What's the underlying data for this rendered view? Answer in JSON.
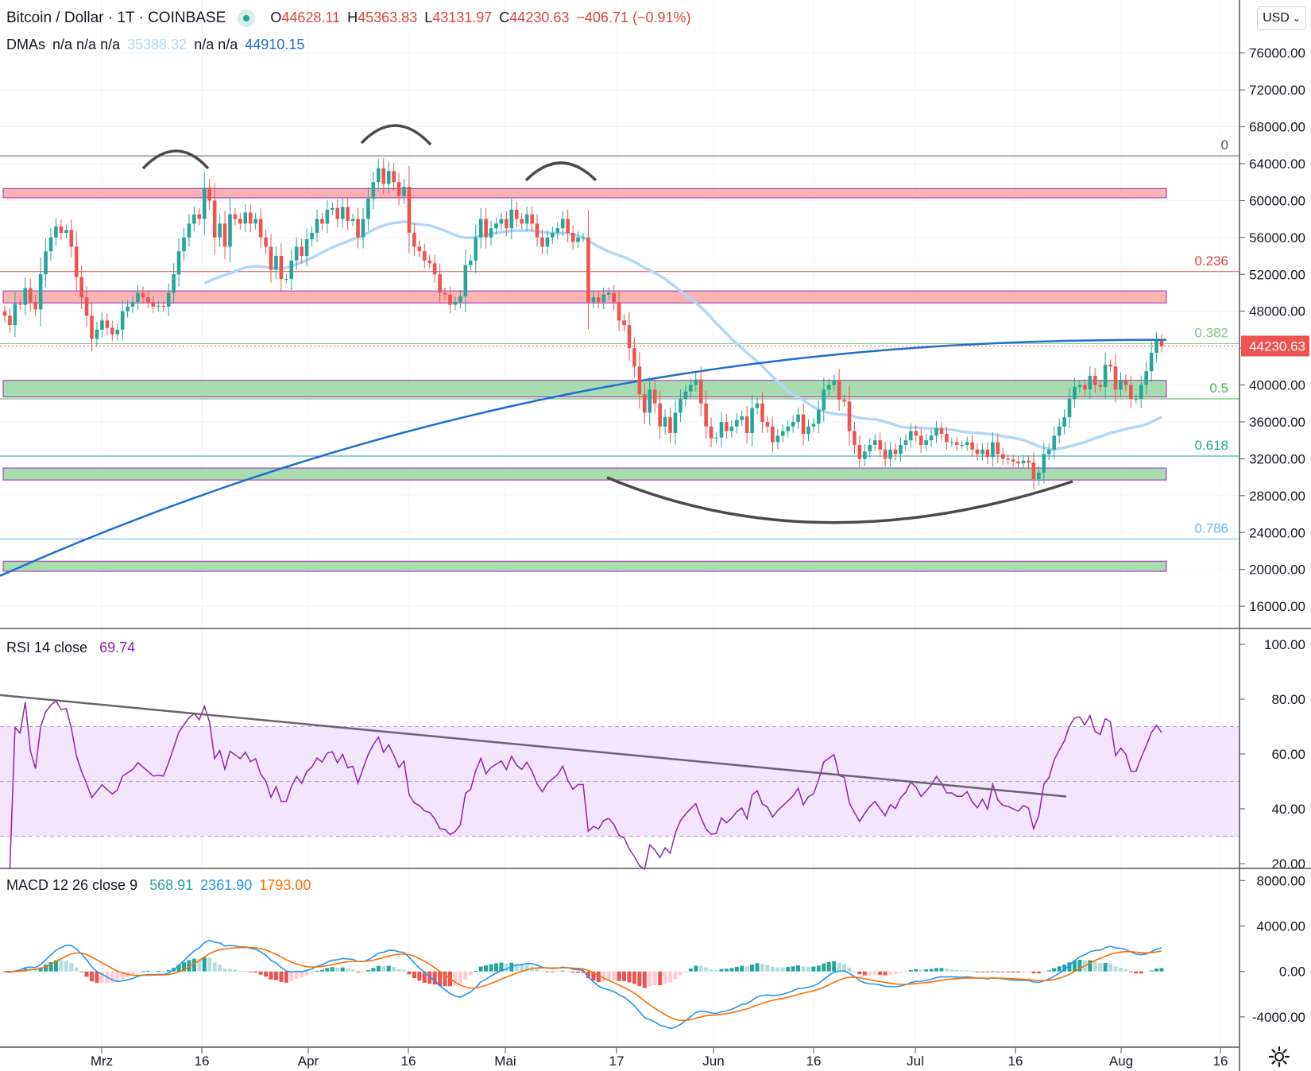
{
  "legend": {
    "symbol": "Bitcoin / Dollar · 1T · COINBASE",
    "o_label": "O",
    "o_value": "44628.11",
    "h_label": "H",
    "h_value": "45363.83",
    "l_label": "L",
    "l_value": "43131.97",
    "c_label": "C",
    "c_value": "44230.63",
    "change": "−406.71 (−0.91%)",
    "dma_label": "DMAs",
    "dma_values": "n/a n/a n/a",
    "dma_value_light": "35388.32",
    "dma_values2": "n/a n/a",
    "dma_value_blue": "44910.15",
    "rsi_label": "RSI 14 close",
    "rsi_value": "69.74",
    "macd_label": "MACD 12 26 close 9",
    "macd_v1": "568.91",
    "macd_v2": "2361.90",
    "macd_v3": "1793.00"
  },
  "currency": "USD",
  "price_tag": "44230.63",
  "colors": {
    "up": "#26a69a",
    "down": "#ef5350",
    "sma_light": "#b3d7f5",
    "sma_blue": "#1e6fcf",
    "rsi": "#8e24aa",
    "rsi_band": "#f3e5fd",
    "macd": "#2196f3",
    "signal": "#ff6d00",
    "zone_red": "#f8b4b4",
    "zone_green": "#a8dcb0",
    "zone_border": "#9c27b0",
    "pattern": "#4a4a4a"
  },
  "chart_data": [
    {
      "type": "candlestick",
      "title": "Bitcoin / Dollar · 1T · COINBASE",
      "ylim": [
        13000,
        80000
      ],
      "y_ticks": [
        "76000.00",
        "72000.00",
        "68000.00",
        "64000.00",
        "60000.00",
        "56000.00",
        "52000.00",
        "48000.00",
        "44000.00",
        "40000.00",
        "36000.00",
        "32000.00",
        "28000.00",
        "24000.00",
        "20000.00",
        "16000.00"
      ],
      "x_ticks": [
        "Mrz",
        "16",
        "Apr",
        "16",
        "Mai",
        "17",
        "Jun",
        "16",
        "Jul",
        "16",
        "Aug",
        "16"
      ],
      "closes": [
        47500,
        46500,
        48800,
        48700,
        50500,
        49000,
        48200,
        52000,
        54500,
        56000,
        57200,
        56500,
        56800,
        55000,
        51700,
        49500,
        47500,
        45000,
        46000,
        47000,
        46200,
        45500,
        46000,
        48000,
        48500,
        49000,
        50000,
        49500,
        49000,
        48500,
        48600,
        48500,
        50000,
        52000,
        54500,
        56000,
        57500,
        58500,
        58000,
        61400,
        60000,
        56000,
        57500,
        55000,
        58500,
        58000,
        57500,
        58700,
        57500,
        58000,
        56000,
        55000,
        52500,
        54000,
        51500,
        51500,
        53500,
        55000,
        54000,
        55800,
        56500,
        58000,
        57500,
        59000,
        59200,
        58000,
        59300,
        57800,
        58000,
        56000,
        58000,
        60200,
        62000,
        63500,
        61800,
        63200,
        62000,
        60500,
        61500,
        56500,
        55000,
        54500,
        53500,
        53200,
        52000,
        50000,
        49800,
        48700,
        49000,
        49600,
        53000,
        53500,
        56000,
        58000,
        56000,
        57000,
        57500,
        58000,
        57000,
        59000,
        58000,
        57500,
        58500,
        57500,
        56000,
        55000,
        56000,
        56500,
        57000,
        58000,
        56500,
        55500,
        56000,
        56000,
        49000,
        49500,
        49000,
        49800,
        50000,
        49000,
        47000,
        46500,
        44000,
        42000,
        39000,
        37000,
        39500,
        38000,
        35500,
        36500,
        34800,
        37000,
        38500,
        39300,
        40000,
        40600,
        38000,
        35500,
        34200,
        34300,
        36000,
        35000,
        35500,
        36200,
        36600,
        34800,
        37500,
        38000,
        36000,
        35500,
        33800,
        34500,
        35000,
        35500,
        36000,
        36800,
        34700,
        35500,
        35800,
        37300,
        39500,
        40000,
        40500,
        38400,
        38200,
        35000,
        33500,
        32000,
        32800,
        33500,
        34000,
        33000,
        32000,
        33000,
        32500,
        33500,
        34000,
        35000,
        34500,
        33500,
        34000,
        34500,
        35300,
        34700,
        33800,
        33800,
        33500,
        33500,
        33800,
        33000,
        32500,
        33000,
        32200,
        33800,
        32500,
        32000,
        31900,
        31700,
        31500,
        31800,
        31600,
        29800,
        30500,
        32500,
        33000,
        34500,
        35500,
        36500,
        38500,
        39800,
        40000,
        39500,
        41000,
        40000,
        39800,
        42200,
        42000,
        39500,
        40500,
        40000,
        38500,
        38500,
        40000,
        41500,
        43500,
        44800,
        44230
      ]
    },
    {
      "type": "line",
      "title": "RSI 14 close",
      "ylim": [
        15,
        102
      ],
      "y_ticks": [
        "100.00",
        "80.00",
        "60.00",
        "40.00",
        "20.00"
      ],
      "bands": [
        70,
        50,
        30
      ]
    },
    {
      "type": "histogram",
      "title": "MACD 12 26 close 9",
      "ylim": [
        -5800,
        9200
      ],
      "y_ticks": [
        "8000.00",
        "4000.00",
        "0.00",
        "-4000.00"
      ]
    }
  ],
  "fib_labels": [
    {
      "text": "0",
      "price": 64850,
      "color": "#555555"
    },
    {
      "text": "0.236",
      "price": 52300,
      "color": "#e0443c"
    },
    {
      "text": "0.382",
      "price": 44500,
      "color": "#81c784"
    },
    {
      "text": "0.5",
      "price": 38500,
      "color": "#4caf50"
    },
    {
      "text": "0.618",
      "price": 32300,
      "color": "#26a69a"
    },
    {
      "text": "0.786",
      "price": 23300,
      "color": "#64b5f6"
    }
  ],
  "zones": [
    {
      "color": "red",
      "top": 61300,
      "bottom": 60300
    },
    {
      "color": "red",
      "top": 50200,
      "bottom": 48900
    },
    {
      "color": "green",
      "top": 40500,
      "bottom": 38700
    },
    {
      "color": "green",
      "top": 31000,
      "bottom": 29700
    },
    {
      "color": "green",
      "top": 20900,
      "bottom": 19800
    }
  ]
}
